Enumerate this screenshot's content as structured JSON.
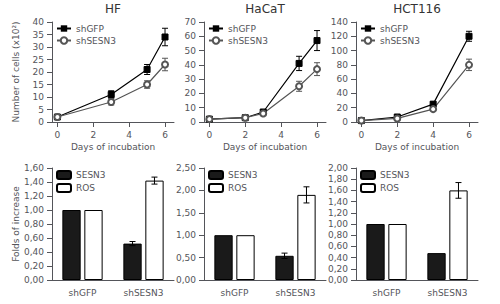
{
  "chart_data": [
    {
      "type": "line",
      "title": "HF",
      "xlabel": "Days of incubation",
      "ylabel": "Number of cells (x10²)",
      "x": [
        0,
        3,
        5,
        6
      ],
      "series": [
        {
          "name": "shGFP",
          "color": "#000000",
          "marker": "square",
          "values": [
            2,
            11,
            21,
            34
          ],
          "errors": [
            0.3,
            1.5,
            2.0,
            3.5
          ]
        },
        {
          "name": "shSESN3",
          "color": "#555555",
          "marker": "open_circle",
          "values": [
            2,
            8,
            15,
            23
          ],
          "errors": [
            0.3,
            1.2,
            1.5,
            2.5
          ]
        }
      ],
      "xlim": [
        -0.3,
        6.5
      ],
      "xticks": [
        0,
        2,
        4,
        6
      ],
      "ylim": [
        0,
        40
      ],
      "yticks": [
        0,
        5,
        10,
        15,
        20,
        25,
        30,
        35,
        40
      ],
      "grid": false,
      "legend": "upper left"
    },
    {
      "type": "line",
      "title": "HaCaT",
      "xlabel": "Days of incubation",
      "x": [
        0,
        2,
        3,
        5,
        6
      ],
      "series": [
        {
          "name": "shGFP",
          "color": "#000000",
          "marker": "square",
          "values": [
            2,
            3,
            7,
            41,
            57
          ],
          "errors": [
            0.3,
            0.4,
            1.0,
            5.0,
            7.0
          ]
        },
        {
          "name": "shSESN3",
          "color": "#555555",
          "marker": "open_circle",
          "values": [
            2,
            3,
            6,
            25,
            37
          ],
          "errors": [
            0.3,
            0.4,
            0.8,
            3.5,
            4.5
          ]
        }
      ],
      "xlim": [
        -0.3,
        6.5
      ],
      "xticks": [
        0,
        2,
        4,
        6
      ],
      "ylim": [
        0,
        70
      ],
      "yticks": [
        0,
        10,
        20,
        30,
        40,
        50,
        60,
        70
      ],
      "grid": false,
      "legend": "upper left"
    },
    {
      "type": "line",
      "title": "HCT116",
      "xlabel": "Days of incubation",
      "x": [
        0,
        2,
        4,
        6
      ],
      "series": [
        {
          "name": "shGFP",
          "color": "#000000",
          "marker": "square",
          "values": [
            2,
            7,
            25,
            120
          ],
          "errors": [
            0.5,
            1.0,
            3.0,
            7.0
          ]
        },
        {
          "name": "shSESN3",
          "color": "#555555",
          "marker": "open_circle",
          "values": [
            2,
            5,
            18,
            80
          ],
          "errors": [
            0.5,
            0.8,
            2.5,
            8.0
          ]
        }
      ],
      "xlim": [
        -0.3,
        6.5
      ],
      "xticks": [
        0,
        2,
        4,
        6
      ],
      "ylim": [
        0,
        140
      ],
      "yticks": [
        0,
        20,
        40,
        60,
        80,
        100,
        120,
        140
      ],
      "grid": false,
      "legend": "upper left"
    },
    {
      "type": "bar",
      "ylabel": "Folds of increase",
      "categories": [
        "shGFP",
        "shSESN3"
      ],
      "series": [
        {
          "name": "SESN3",
          "color": "#1a1a1a",
          "values": [
            1.0,
            0.52
          ],
          "errors": [
            null,
            0.03
          ]
        },
        {
          "name": "ROS",
          "color": "#ffffff",
          "values": [
            1.0,
            1.42
          ],
          "errors": [
            null,
            0.05
          ]
        }
      ],
      "ylim": [
        0,
        1.6
      ],
      "yticks": [
        {
          "value": 0.0,
          "label": "0,00"
        },
        {
          "value": 0.2,
          "label": "0,20"
        },
        {
          "value": 0.4,
          "label": "0,40"
        },
        {
          "value": 0.6,
          "label": "0,60"
        },
        {
          "value": 0.8,
          "label": "0,80"
        },
        {
          "value": 1.0,
          "label": "1,00"
        },
        {
          "value": 1.2,
          "label": "1,20"
        },
        {
          "value": 1.4,
          "label": "1,40"
        },
        {
          "value": 1.6,
          "label": "1,60"
        }
      ],
      "grid": false,
      "legend": "upper left"
    },
    {
      "type": "bar",
      "categories": [
        "shGFP",
        "shSESN3"
      ],
      "series": [
        {
          "name": "SESN3",
          "color": "#1a1a1a",
          "values": [
            1.0,
            0.54
          ],
          "errors": [
            null,
            0.06
          ]
        },
        {
          "name": "ROS",
          "color": "#ffffff",
          "values": [
            1.0,
            1.9
          ],
          "errors": [
            null,
            0.18
          ]
        }
      ],
      "ylim": [
        0,
        2.5
      ],
      "yticks": [
        {
          "value": 0.0,
          "label": "0,00"
        },
        {
          "value": 0.5,
          "label": "0,50"
        },
        {
          "value": 1.0,
          "label": "1,00"
        },
        {
          "value": 1.5,
          "label": "1,50"
        },
        {
          "value": 2.0,
          "label": "2,00"
        },
        {
          "value": 2.5,
          "label": "2,50"
        }
      ],
      "grid": false,
      "legend": "upper left"
    },
    {
      "type": "bar",
      "categories": [
        "shGFP",
        "shSESN3"
      ],
      "series": [
        {
          "name": "SESN3",
          "color": "#1a1a1a",
          "values": [
            1.0,
            0.48
          ]
        },
        {
          "name": "ROS",
          "color": "#ffffff",
          "values": [
            1.0,
            1.6
          ],
          "errors": [
            null,
            0.14
          ]
        }
      ],
      "ylim": [
        0,
        2.0
      ],
      "yticks": [
        {
          "value": 0.0,
          "label": "0,00"
        },
        {
          "value": 0.2,
          "label": "0,20"
        },
        {
          "value": 0.4,
          "label": "0,40"
        },
        {
          "value": 0.6,
          "label": "0,60"
        },
        {
          "value": 0.8,
          "label": "0,80"
        },
        {
          "value": 1.0,
          "label": "1,00"
        },
        {
          "value": 1.2,
          "label": "1,20"
        },
        {
          "value": 1.4,
          "label": "1,40"
        },
        {
          "value": 1.6,
          "label": "1,60"
        },
        {
          "value": 1.8,
          "label": "1,80"
        },
        {
          "value": 2.0,
          "label": "2,00"
        }
      ],
      "grid": false,
      "legend": "upper left"
    }
  ]
}
